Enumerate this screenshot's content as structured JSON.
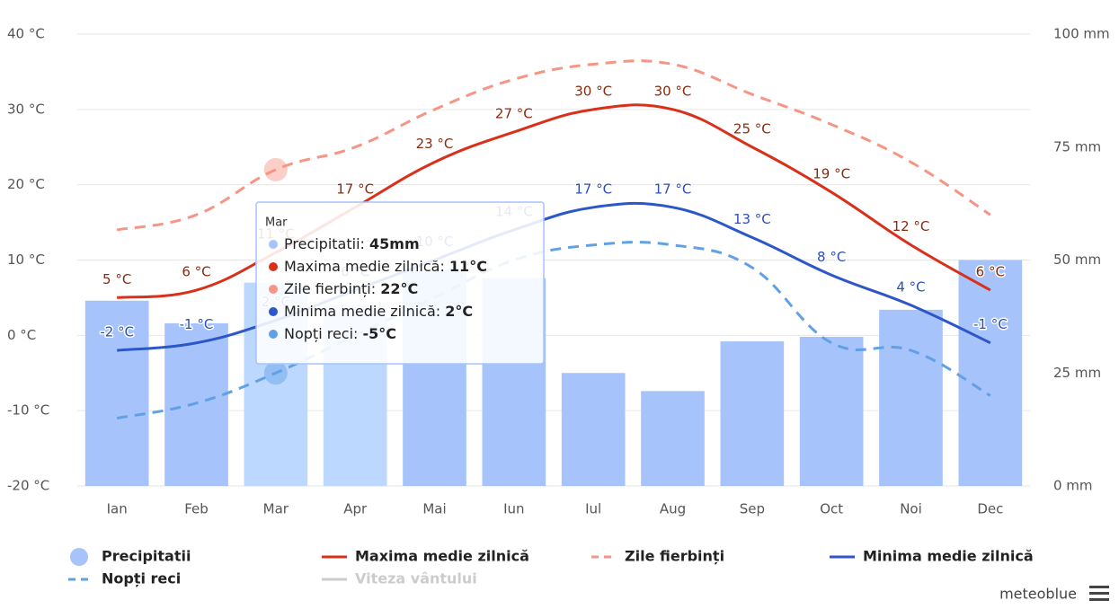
{
  "chart_data": {
    "type": "combo",
    "categories": [
      "Ian",
      "Feb",
      "Mar",
      "Apr",
      "Mai",
      "Iun",
      "Iul",
      "Aug",
      "Sep",
      "Oct",
      "Noi",
      "Dec"
    ],
    "series": [
      {
        "name": "Precipitatii",
        "type": "bar",
        "axis": "y2",
        "color": "#a6c4fb",
        "highlight_color": "#bcd8ff",
        "values": [
          41,
          36,
          45,
          40,
          48,
          46,
          25,
          21,
          32,
          33,
          39,
          50
        ]
      },
      {
        "name": "Maxima medie zilnică",
        "type": "line",
        "color": "#d9301a",
        "label_color": "#8a2a0e",
        "values": [
          5,
          6,
          11,
          17,
          23,
          27,
          30,
          30,
          25,
          19,
          12,
          6
        ],
        "value_labels": [
          "5 °C",
          "6 °C",
          "11 °C",
          "17 °C",
          "23 °C",
          "27 °C",
          "30 °C",
          "30 °C",
          "25 °C",
          "19 °C",
          "12 °C",
          "6 °C"
        ]
      },
      {
        "name": "Zile fierbinți",
        "type": "line",
        "dashed": true,
        "color": "#f69584",
        "values": [
          14,
          16,
          22,
          25,
          30,
          34,
          36,
          36,
          32,
          28,
          23,
          16
        ]
      },
      {
        "name": "Minima medie zilnică",
        "type": "line",
        "color": "#2c56c9",
        "label_color": "#2b4fb5",
        "values": [
          -2,
          -1,
          2,
          6,
          10,
          14,
          17,
          17,
          13,
          8,
          4,
          -1
        ],
        "value_labels": [
          "-2 °C",
          "-1 °C",
          "2 °C",
          "6 °C",
          "10 °C",
          "14 °C",
          "17 °C",
          "17 °C",
          "13 °C",
          "8 °C",
          "4 °C",
          "-1 °C"
        ]
      },
      {
        "name": "Nopți reci",
        "type": "line",
        "dashed": true,
        "color": "#62a0e6",
        "values": [
          -11,
          -9,
          -5,
          0,
          5,
          10,
          12,
          12,
          9,
          -1,
          -2,
          -8
        ]
      },
      {
        "name": "Viteza vântului",
        "type": "line",
        "visible": false,
        "color": "#cccccc"
      }
    ],
    "ylim": [
      -20,
      40
    ],
    "yticks": [
      {
        "value": -20,
        "label": "-20 °C"
      },
      {
        "value": -10,
        "label": "-10 °C"
      },
      {
        "value": 0,
        "label": "0 °C"
      },
      {
        "value": 10,
        "label": "10 °C"
      },
      {
        "value": 20,
        "label": "20 °C"
      },
      {
        "value": 30,
        "label": "30 °C"
      },
      {
        "value": 40,
        "label": "40 °C"
      }
    ],
    "y2lim": [
      0,
      100
    ],
    "y2ticks": [
      {
        "value": 0,
        "label": "0 mm"
      },
      {
        "value": 25,
        "label": "25 mm"
      },
      {
        "value": 50,
        "label": "50 mm"
      },
      {
        "value": 75,
        "label": "75 mm"
      },
      {
        "value": 100,
        "label": "100 mm"
      }
    ],
    "grid": true,
    "legend": "bottom",
    "tooltip": {
      "index": 2,
      "title": "Mar",
      "items": [
        {
          "label": "Precipitatii: ",
          "value": "45mm"
        },
        {
          "label": "Maxima medie zilnică: ",
          "value": "11°C"
        },
        {
          "label": "Zile fierbinți: ",
          "value": "22°C"
        },
        {
          "label": "Minima medie zilnică: ",
          "value": "2°C"
        },
        {
          "label": "Nopți reci: ",
          "value": "-5°C"
        }
      ]
    },
    "credit": "meteoblue"
  }
}
